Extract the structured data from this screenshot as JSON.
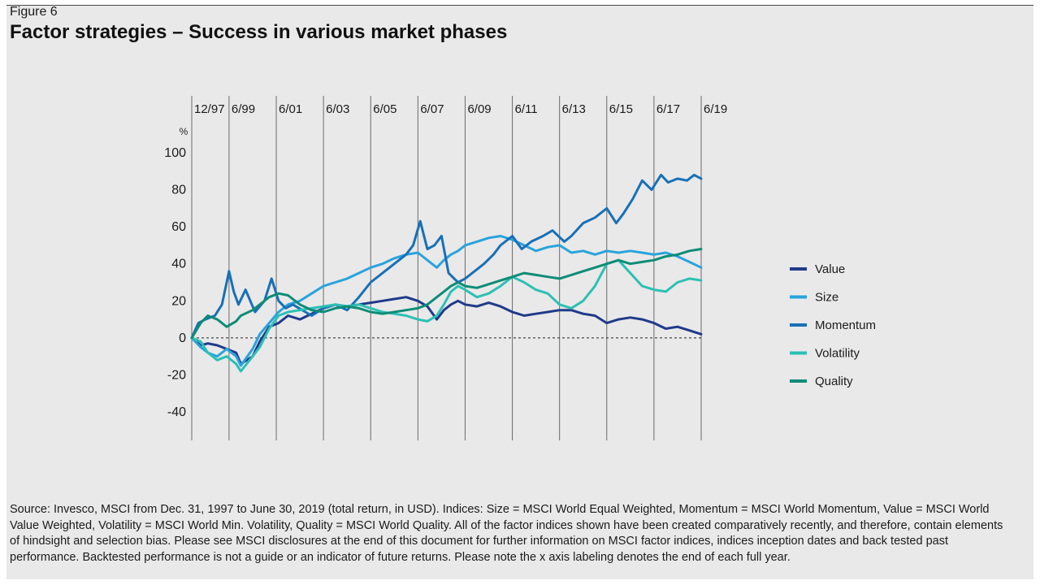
{
  "figure_label": "Figure 6",
  "title": "Factor strategies – Success in various market phases",
  "source_note": "Source: Invesco, MSCI from Dec. 31, 1997 to June 30, 2019 (total return, in USD). Indices: Size = MSCI World Equal Weighted, Momentum = MSCI World Momentum, Value = MSCI World Value Weighted, Volatility = MSCI World Min. Volatility, Quality = MSCI World Quality. All of the factor indices shown have been created comparatively recently, and therefore, contain elements of hindsight and selection bias. Please see MSCI disclosures at the end of this document for further information on MSCI factor indices, indices inception dates and back tested past performance. Backtested performance is not a guide or an indicator of future returns. Please note the x axis labeling denotes the end of each full year.",
  "chart_data": {
    "type": "line",
    "ylabel": "%",
    "ylim": [
      -45,
      105
    ],
    "xlim": [
      1997.92,
      2019.5
    ],
    "yticks": [
      100,
      80,
      60,
      40,
      20,
      0,
      -20,
      -40
    ],
    "x_tick_labels": [
      {
        "x": 1997.92,
        "label": "12/97"
      },
      {
        "x": 1999.5,
        "label": "6/99"
      },
      {
        "x": 2001.5,
        "label": "6/01"
      },
      {
        "x": 2003.5,
        "label": "6/03"
      },
      {
        "x": 2005.5,
        "label": "6/05"
      },
      {
        "x": 2007.5,
        "label": "6/07"
      },
      {
        "x": 2009.5,
        "label": "6/09"
      },
      {
        "x": 2011.5,
        "label": "6/11"
      },
      {
        "x": 2013.5,
        "label": "6/13"
      },
      {
        "x": 2015.5,
        "label": "6/15"
      },
      {
        "x": 2017.5,
        "label": "6/17"
      },
      {
        "x": 2019.5,
        "label": "6/19"
      }
    ],
    "zero_line": true,
    "series": [
      {
        "name": "Value",
        "color": "#1f3a8a",
        "x": [
          1997.92,
          1998.3,
          1998.6,
          1999.0,
          1999.4,
          1999.8,
          2000.0,
          2000.5,
          2000.8,
          2001.2,
          2001.6,
          2002.0,
          2002.5,
          2003.0,
          2003.5,
          2004.0,
          2004.5,
          2005.0,
          2005.5,
          2006.0,
          2006.5,
          2007.0,
          2007.5,
          2007.9,
          2008.3,
          2008.6,
          2008.9,
          2009.2,
          2009.5,
          2010.0,
          2010.5,
          2011.0,
          2011.5,
          2012.0,
          2012.5,
          2013.0,
          2013.5,
          2014.0,
          2014.5,
          2015.0,
          2015.5,
          2016.0,
          2016.5,
          2017.0,
          2017.5,
          2018.0,
          2018.5,
          2019.0,
          2019.5
        ],
        "y": [
          0,
          -4,
          -3,
          -4,
          -6,
          -8,
          -14,
          -10,
          -2,
          6,
          8,
          12,
          10,
          13,
          16,
          18,
          17,
          18,
          19,
          20,
          21,
          22,
          20,
          17,
          10,
          15,
          18,
          20,
          18,
          17,
          19,
          17,
          14,
          12,
          13,
          14,
          15,
          15,
          13,
          12,
          8,
          10,
          11,
          10,
          8,
          5,
          6,
          4,
          2
        ]
      },
      {
        "name": "Size",
        "color": "#29a3dc",
        "x": [
          1997.92,
          1998.3,
          1998.6,
          1999.0,
          1999.4,
          1999.8,
          2000.0,
          2000.5,
          2000.8,
          2001.2,
          2001.6,
          2002.0,
          2002.5,
          2003.0,
          2003.5,
          2004.0,
          2004.5,
          2005.0,
          2005.5,
          2006.0,
          2006.5,
          2007.0,
          2007.5,
          2007.9,
          2008.3,
          2008.6,
          2008.9,
          2009.2,
          2009.5,
          2010.0,
          2010.5,
          2011.0,
          2011.5,
          2012.0,
          2012.5,
          2013.0,
          2013.5,
          2014.0,
          2014.5,
          2015.0,
          2015.5,
          2016.0,
          2016.5,
          2017.0,
          2017.5,
          2018.0,
          2018.5,
          2019.0,
          2019.5
        ],
        "y": [
          0,
          -5,
          -8,
          -10,
          -6,
          -10,
          -15,
          -6,
          2,
          8,
          14,
          18,
          20,
          24,
          28,
          30,
          32,
          35,
          38,
          40,
          43,
          45,
          46,
          42,
          38,
          42,
          45,
          47,
          50,
          52,
          54,
          55,
          53,
          50,
          47,
          49,
          50,
          46,
          47,
          45,
          47,
          46,
          47,
          46,
          45,
          46,
          44,
          41,
          38
        ]
      },
      {
        "name": "Momentum",
        "color": "#1870b7",
        "x": [
          1997.92,
          1998.2,
          1998.5,
          1998.9,
          1999.2,
          1999.5,
          1999.7,
          1999.9,
          2000.2,
          2000.6,
          2001.0,
          2001.3,
          2001.6,
          2001.9,
          2002.2,
          2002.6,
          2003.0,
          2003.5,
          2004.0,
          2004.5,
          2005.0,
          2005.5,
          2006.0,
          2006.5,
          2007.0,
          2007.3,
          2007.6,
          2007.9,
          2008.2,
          2008.5,
          2008.8,
          2009.2,
          2009.5,
          2009.9,
          2010.3,
          2010.7,
          2011.0,
          2011.5,
          2011.9,
          2012.3,
          2012.8,
          2013.2,
          2013.7,
          2014.0,
          2014.5,
          2015.0,
          2015.5,
          2015.9,
          2016.2,
          2016.6,
          2017.0,
          2017.4,
          2017.8,
          2018.1,
          2018.5,
          2018.9,
          2019.2,
          2019.5
        ],
        "y": [
          0,
          8,
          10,
          12,
          18,
          36,
          25,
          18,
          26,
          14,
          20,
          32,
          20,
          16,
          18,
          15,
          12,
          16,
          18,
          15,
          22,
          30,
          35,
          40,
          45,
          50,
          63,
          48,
          50,
          55,
          35,
          30,
          32,
          36,
          40,
          45,
          50,
          55,
          48,
          52,
          55,
          58,
          52,
          55,
          62,
          65,
          70,
          62,
          67,
          75,
          85,
          80,
          88,
          84,
          86,
          85,
          88,
          86
        ]
      },
      {
        "name": "Volatility",
        "color": "#2cc0b4",
        "x": [
          1997.92,
          1998.3,
          1998.6,
          1999.0,
          1999.4,
          1999.8,
          2000.0,
          2000.5,
          2000.8,
          2001.2,
          2001.6,
          2002.0,
          2002.5,
          2003.0,
          2003.5,
          2004.0,
          2004.5,
          2005.0,
          2005.5,
          2006.0,
          2006.5,
          2007.0,
          2007.5,
          2007.9,
          2008.3,
          2008.6,
          2008.9,
          2009.2,
          2009.5,
          2010.0,
          2010.5,
          2011.0,
          2011.5,
          2012.0,
          2012.5,
          2013.0,
          2013.5,
          2014.0,
          2014.5,
          2015.0,
          2015.5,
          2016.0,
          2016.5,
          2017.0,
          2017.5,
          2018.0,
          2018.5,
          2019.0,
          2019.5
        ],
        "y": [
          0,
          -2,
          -8,
          -12,
          -10,
          -14,
          -18,
          -10,
          -5,
          5,
          12,
          14,
          15,
          16,
          17,
          18,
          17,
          18,
          16,
          14,
          13,
          12,
          10,
          9,
          12,
          18,
          25,
          28,
          26,
          22,
          24,
          28,
          33,
          30,
          26,
          24,
          18,
          16,
          20,
          28,
          40,
          42,
          35,
          28,
          26,
          25,
          30,
          32,
          31
        ]
      },
      {
        "name": "Quality",
        "color": "#0e8c76",
        "x": [
          1997.92,
          1998.3,
          1998.6,
          1999.0,
          1999.4,
          1999.8,
          2000.0,
          2000.5,
          2000.8,
          2001.2,
          2001.6,
          2002.0,
          2002.5,
          2003.0,
          2003.5,
          2004.0,
          2004.5,
          2005.0,
          2005.5,
          2006.0,
          2006.5,
          2007.0,
          2007.5,
          2007.9,
          2008.3,
          2008.6,
          2008.9,
          2009.2,
          2009.5,
          2010.0,
          2010.5,
          2011.0,
          2011.5,
          2012.0,
          2012.5,
          2013.0,
          2013.5,
          2014.0,
          2014.5,
          2015.0,
          2015.5,
          2016.0,
          2016.5,
          2017.0,
          2017.5,
          2018.0,
          2018.5,
          2019.0,
          2019.5
        ],
        "y": [
          0,
          8,
          12,
          10,
          6,
          9,
          12,
          15,
          18,
          22,
          24,
          23,
          18,
          15,
          14,
          16,
          17,
          16,
          14,
          13,
          14,
          15,
          16,
          18,
          22,
          25,
          28,
          30,
          28,
          27,
          29,
          31,
          33,
          35,
          34,
          33,
          32,
          34,
          36,
          38,
          40,
          42,
          40,
          41,
          42,
          44,
          45,
          47,
          48
        ]
      }
    ],
    "legend": {
      "placement": "right",
      "entries": [
        "Value",
        "Size",
        "Momentum",
        "Volatility",
        "Quality"
      ]
    }
  }
}
